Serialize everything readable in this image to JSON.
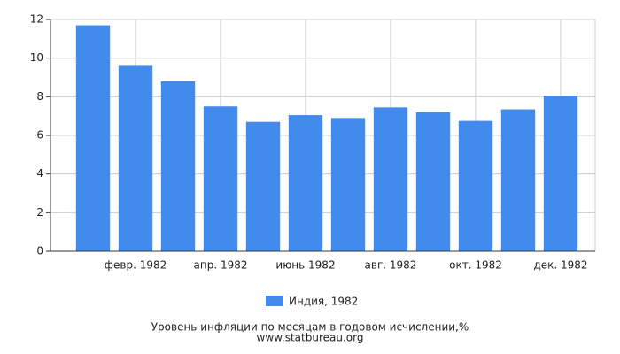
{
  "chart_data": {
    "type": "bar",
    "title": "Уровень инфляции по месяцам в годовом исчислении,%",
    "source": "www.statbureau.org",
    "categories": [
      null,
      "февр. 1982",
      null,
      "апр. 1982",
      null,
      "июнь 1982",
      null,
      "авг. 1982",
      null,
      "окт. 1982",
      null,
      "дек. 1982"
    ],
    "series": [
      {
        "name": "Индия, 1982",
        "color": "#428bed",
        "values": [
          11.7,
          9.6,
          8.8,
          7.5,
          6.7,
          7.05,
          6.9,
          7.45,
          7.2,
          6.75,
          7.35,
          8.05
        ]
      }
    ],
    "ylim": [
      0,
      12
    ],
    "yticks": [
      0,
      2,
      4,
      6,
      8,
      10,
      12
    ],
    "grid": true
  }
}
